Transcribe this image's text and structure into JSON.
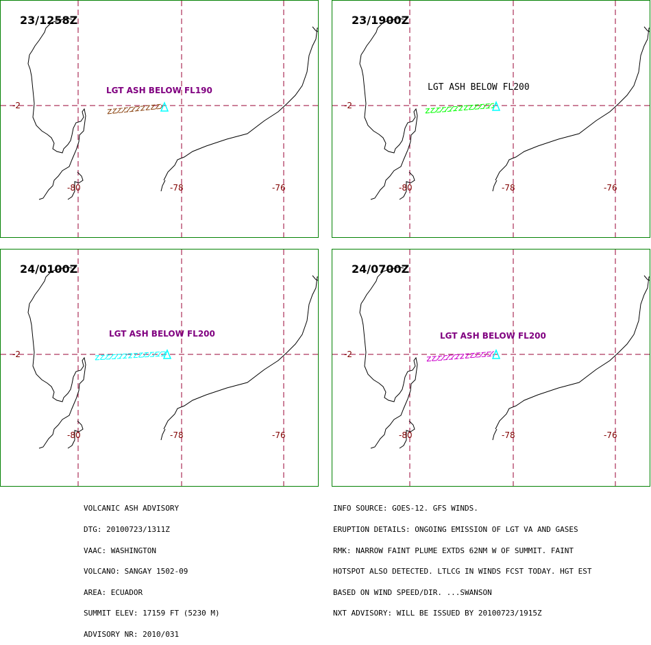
{
  "colors": {
    "border": "#008000",
    "grid": "#990033",
    "tick_label": "#800000",
    "volcano_marker": "#00ffff"
  },
  "panels": [
    {
      "time": "23/1258Z",
      "label": "LGT ASH BELOW FL190",
      "label_color": "#800080",
      "plume_color": "#8b4513",
      "label_style": "bold"
    },
    {
      "time": "23/1900Z",
      "label": "LGT ASH BELOW FL200",
      "label_color": "#000000",
      "plume_color": "#00ff00",
      "label_style": "mono"
    },
    {
      "time": "24/0100Z",
      "label": "LGT ASH BELOW FL200",
      "label_color": "#800080",
      "plume_color": "#00ffff",
      "label_style": "bold"
    },
    {
      "time": "24/0700Z",
      "label": "LGT ASH BELOW FL200",
      "label_color": "#800080",
      "plume_color": "#cc00cc",
      "label_style": "bold"
    }
  ],
  "axes": {
    "lat_label": "-2",
    "lon_labels": [
      "-80",
      "-78",
      "-76"
    ]
  },
  "advisory_left": [
    "VOLCANIC ASH ADVISORY",
    "DTG: 20100723/1311Z",
    "VAAC: WASHINGTON",
    "VOLCANO: SANGAY 1502-09",
    "AREA: ECUADOR",
    "SUMMIT ELEV: 17159 FT (5230 M)",
    "ADVISORY NR: 2010/031"
  ],
  "advisory_right": [
    "INFO SOURCE: GOES-12. GFS WINDS.",
    "ERUPTION DETAILS: ONGOING EMISSION OF LGT VA AND GASES",
    "RMK: NARROW FAINT PLUME EXTDS 62NM W OF SUMMIT. FAINT",
    "HOTSPOT ALSO DETECTED. LTLCG IN WINDS FCST TODAY. HGT EST",
    "BASED ON WIND SPEED/DIR. ...SWANSON",
    "NXT ADVISORY: WILL BE ISSUED BY 20100723/1915Z"
  ]
}
